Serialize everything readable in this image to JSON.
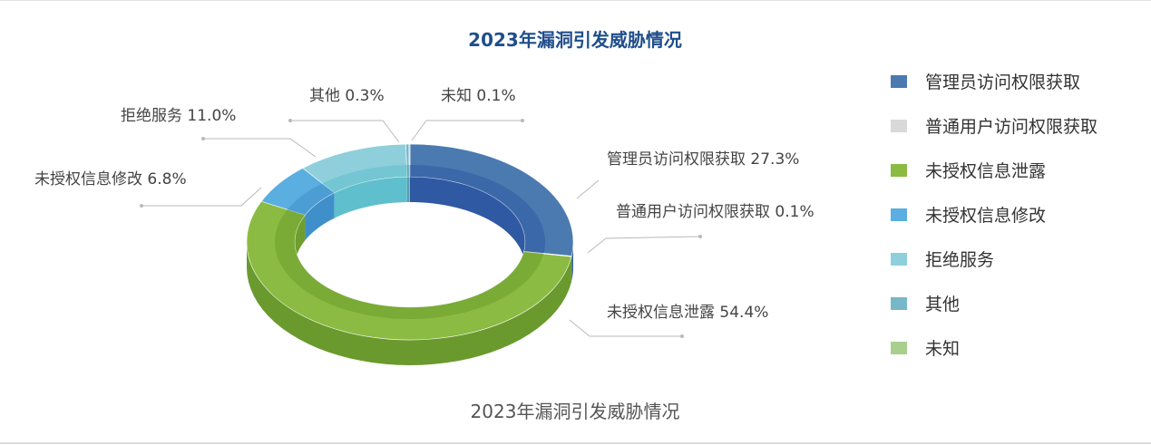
{
  "chart_data": {
    "type": "pie",
    "title": "2023年漏洞引发威胁情况",
    "caption": "2023年漏洞引发威胁情况",
    "slices": [
      {
        "name": "管理员访问权限获取",
        "value": 27.3,
        "label": "管理员访问权限获取 27.3%",
        "color": "#4a7ab0",
        "inner_color": "#3059a3",
        "side_color": "#3a6394"
      },
      {
        "name": "普通用户访问权限获取",
        "value": 0.1,
        "label": "普通用户访问权限获取 0.1%",
        "color": "#d9d9d9",
        "inner_color": "#bcbcbc",
        "side_color": "#bdbdbd"
      },
      {
        "name": "未授权信息泄露",
        "value": 54.4,
        "label": "未授权信息泄露 54.4%",
        "color": "#8bbb42",
        "inner_color": "#6e9e2e",
        "side_color": "#6a9a2e"
      },
      {
        "name": "未授权信息修改",
        "value": 6.8,
        "label": "未授权信息修改 6.8%",
        "color": "#5aaee0",
        "inner_color": "#3f8fca",
        "side_color": "#3f8cc0"
      },
      {
        "name": "拒绝服务",
        "value": 11.0,
        "label": "拒绝服务 11.0%",
        "color": "#8fcfdc",
        "inner_color": "#5fbfcc",
        "side_color": "#6fb2c0"
      },
      {
        "name": "其他",
        "value": 0.3,
        "label": "其他 0.3%",
        "color": "#77b7c7",
        "inner_color": "#5aa0b2",
        "side_color": "#5c9aaa"
      },
      {
        "name": "未知",
        "value": 0.1,
        "label": "未知 0.1%",
        "color": "#a8d08d",
        "inner_color": "#8cbb70",
        "side_color": "#8ab06f"
      }
    ],
    "legend_position": "right",
    "legend_order": [
      "管理员访问权限获取",
      "普通用户访问权限获取",
      "未授权信息泄露",
      "未授权信息修改",
      "拒绝服务",
      "其他",
      "未知"
    ]
  }
}
